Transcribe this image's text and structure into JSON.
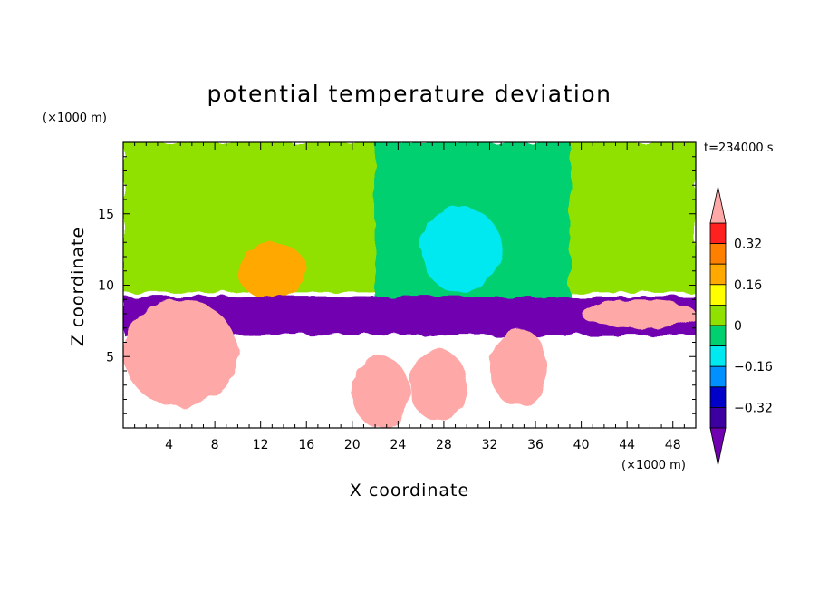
{
  "chart_data": {
    "type": "heatmap",
    "title": "potential temperature deviation",
    "xlabel": "X coordinate",
    "ylabel": "Z coordinate",
    "x_unit": "(×1000 m)",
    "y_unit": "(×1000 m)",
    "time_label": "t=234000 s",
    "xlim": [
      0,
      50
    ],
    "ylim": [
      0,
      20
    ],
    "x_ticks": [
      4,
      8,
      12,
      16,
      20,
      24,
      28,
      32,
      36,
      40,
      44,
      48
    ],
    "y_ticks": [
      5,
      10,
      15
    ],
    "colorbar": {
      "levels": [
        -0.4,
        -0.32,
        -0.24,
        -0.16,
        -0.08,
        0,
        0.08,
        0.16,
        0.24,
        0.32,
        0.4
      ],
      "tick_labels": [
        "0.32",
        "0.16",
        "0",
        "−0.16",
        "−0.32"
      ],
      "tick_values": [
        0.32,
        0.16,
        0,
        -0.16,
        -0.32
      ],
      "colors": {
        "over": "#ffa8a8",
        "bands_top_to_bottom": [
          "#ff2020",
          "#ff8000",
          "#ffa800",
          "#ffff00",
          "#90e000",
          "#00d070",
          "#00e8f0",
          "#0090ff",
          "#0000c8",
          "#3c00a0"
        ],
        "under": "#7000b0"
      }
    },
    "field_regions": [
      {
        "name": "upper-background",
        "x": [
          0,
          50
        ],
        "z": [
          9.5,
          20
        ],
        "value": 0.05
      },
      {
        "name": "upper-warm-plume",
        "x": [
          10,
          16
        ],
        "z": [
          9,
          13
        ],
        "value": 0.2
      },
      {
        "name": "upper-cool-column",
        "x": [
          22,
          39
        ],
        "z": [
          9,
          20
        ],
        "value": -0.05
      },
      {
        "name": "upper-cold-core",
        "x": [
          26,
          33
        ],
        "z": [
          9.5,
          15.5
        ],
        "value": -0.12
      },
      {
        "name": "inversion-stable-layer",
        "x": [
          0,
          50
        ],
        "z": [
          6.5,
          9.2
        ],
        "value": -0.45
      },
      {
        "name": "warm-anomaly-left",
        "x": [
          0,
          10
        ],
        "z": [
          1.5,
          9
        ],
        "value": 0.45
      },
      {
        "name": "warm-anomaly-right",
        "x": [
          40,
          50
        ],
        "z": [
          7,
          9
        ],
        "value": 0.45
      },
      {
        "name": "warm-plume-1",
        "x": [
          20,
          25
        ],
        "z": [
          0,
          5
        ],
        "value": 0.45
      },
      {
        "name": "warm-plume-2",
        "x": [
          25,
          30
        ],
        "z": [
          0.5,
          5.5
        ],
        "value": 0.45
      },
      {
        "name": "warm-plume-3",
        "x": [
          32,
          37
        ],
        "z": [
          1.5,
          7
        ],
        "value": 0.45
      }
    ]
  }
}
